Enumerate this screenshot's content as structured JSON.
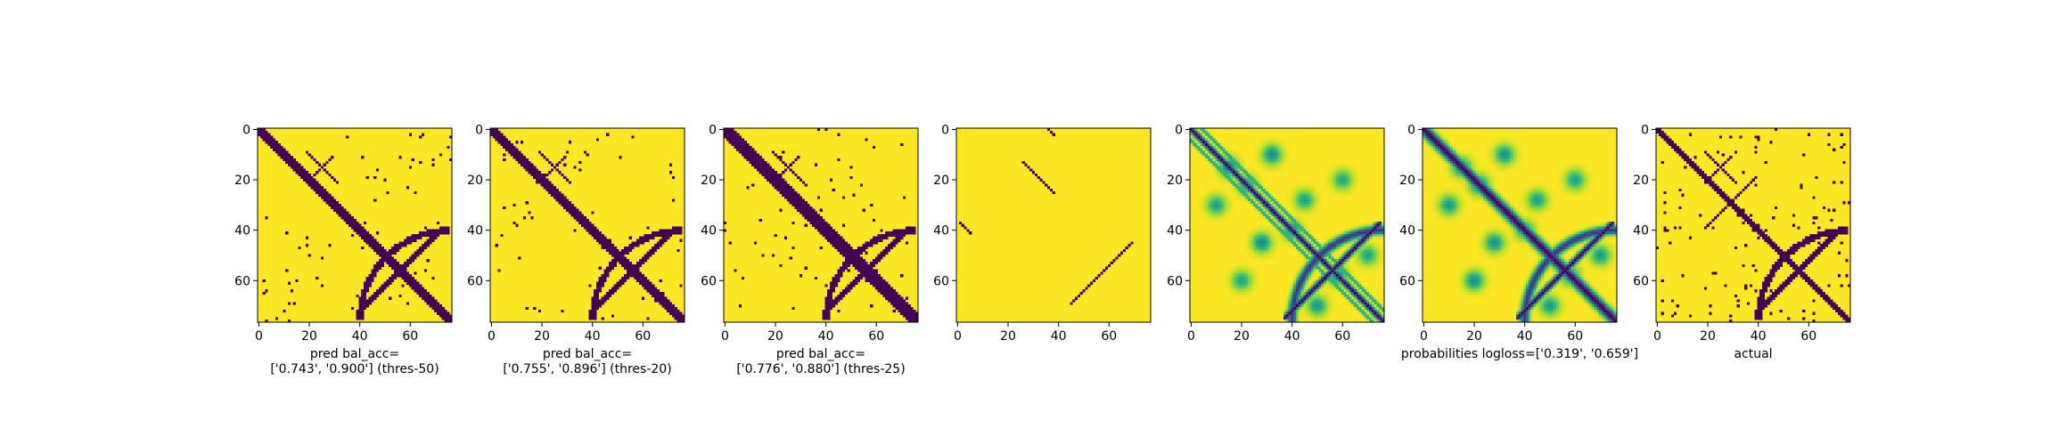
{
  "figure": {
    "background": "#ffffff",
    "colormap": {
      "name": "viridis",
      "low": "#440154",
      "mid": "#21918c",
      "high": "#fde725"
    }
  },
  "chart_data": [
    {
      "type": "heatmap",
      "index": 0,
      "variant": "binary",
      "matrix_size": 77,
      "xticks": [
        0,
        20,
        40,
        60
      ],
      "yticks": [
        0,
        20,
        40,
        60
      ],
      "xlim": [
        0,
        77
      ],
      "ylim": [
        77,
        0
      ],
      "caption_lines": [
        "pred bal_acc=",
        "['0.743', '0.900'] (thres-50)"
      ],
      "diagonal_halfwidth": 2.0,
      "extra_arcs": true
    },
    {
      "type": "heatmap",
      "index": 1,
      "variant": "binary",
      "matrix_size": 77,
      "xticks": [
        0,
        20,
        40,
        60
      ],
      "yticks": [
        0,
        20,
        40,
        60
      ],
      "xlim": [
        0,
        77
      ],
      "ylim": [
        77,
        0
      ],
      "caption_lines": [
        "pred bal_acc=",
        "['0.755', '0.896'] (thres-20)"
      ],
      "diagonal_halfwidth": 2.4,
      "extra_arcs": true
    },
    {
      "type": "heatmap",
      "index": 2,
      "variant": "binary",
      "matrix_size": 77,
      "xticks": [
        0,
        20,
        40,
        60
      ],
      "yticks": [
        0,
        20,
        40,
        60
      ],
      "xlim": [
        0,
        77
      ],
      "ylim": [
        77,
        0
      ],
      "caption_lines": [
        "pred bal_acc=",
        "['0.776', '0.880'] (thres-25)"
      ],
      "diagonal_halfwidth": 3.2,
      "extra_arcs": true
    },
    {
      "type": "heatmap",
      "index": 3,
      "variant": "sparse",
      "matrix_size": 77,
      "xticks": [
        0,
        20,
        40,
        60
      ],
      "yticks": [
        0,
        20,
        40,
        60
      ],
      "xlim": [
        0,
        77
      ],
      "ylim": [
        77,
        0
      ],
      "caption_lines": []
    },
    {
      "type": "heatmap",
      "index": 4,
      "variant": "continuous",
      "matrix_size": 77,
      "xticks": [
        0,
        20,
        40,
        60
      ],
      "yticks": [
        0,
        20,
        40,
        60
      ],
      "xlim": [
        0,
        77
      ],
      "ylim": [
        77,
        0
      ],
      "caption_lines": []
    },
    {
      "type": "heatmap",
      "index": 5,
      "variant": "continuous-probabilities",
      "matrix_size": 77,
      "xticks": [
        0,
        20,
        40,
        60
      ],
      "yticks": [
        0,
        20,
        40,
        60
      ],
      "xlim": [
        0,
        77
      ],
      "ylim": [
        77,
        0
      ],
      "caption_lines": [
        "probabilities logloss=['0.319', '0.659']"
      ]
    },
    {
      "type": "heatmap",
      "index": 6,
      "variant": "actual",
      "matrix_size": 77,
      "xticks": [
        0,
        20,
        40,
        60
      ],
      "yticks": [
        0,
        20,
        40,
        60
      ],
      "xlim": [
        0,
        77
      ],
      "ylim": [
        77,
        0
      ],
      "caption_lines": [
        "actual"
      ]
    }
  ]
}
